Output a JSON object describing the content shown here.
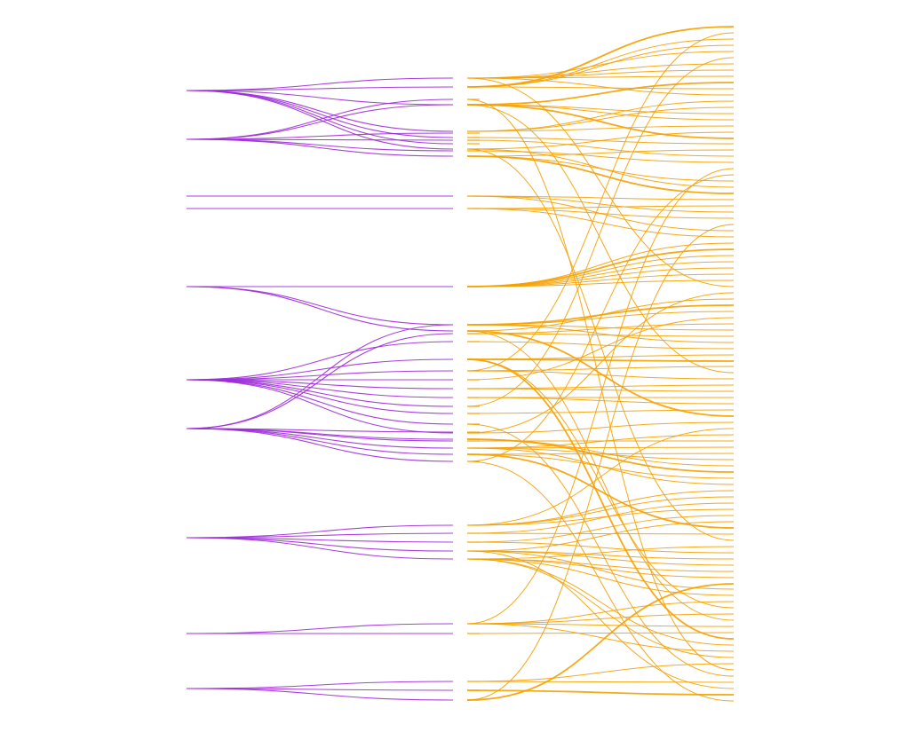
{
  "colors": {
    "background": "#ffffff",
    "purple_links": "#9d2bd9",
    "orange_links": "#f5a000"
  },
  "diagram": {
    "type": "multi-level-link-tree",
    "labels_visible": false,
    "levels": 3,
    "left_group": {
      "color_name": "purple",
      "roots": [
        {
          "id": "A",
          "fanout": 7
        },
        {
          "id": "B",
          "fanout": 6
        },
        {
          "id": "C",
          "fanout": 1
        },
        {
          "id": "D",
          "fanout": 1
        },
        {
          "id": "E",
          "fanout": 3
        },
        {
          "id": "F",
          "fanout": 10
        },
        {
          "id": "G",
          "fanout": 8
        },
        {
          "id": "H",
          "fanout": 5
        },
        {
          "id": "I",
          "fanout": 2
        },
        {
          "id": "J",
          "fanout": 3
        }
      ]
    },
    "right_group": {
      "color_name": "orange",
      "total_leaves": 110
    }
  }
}
